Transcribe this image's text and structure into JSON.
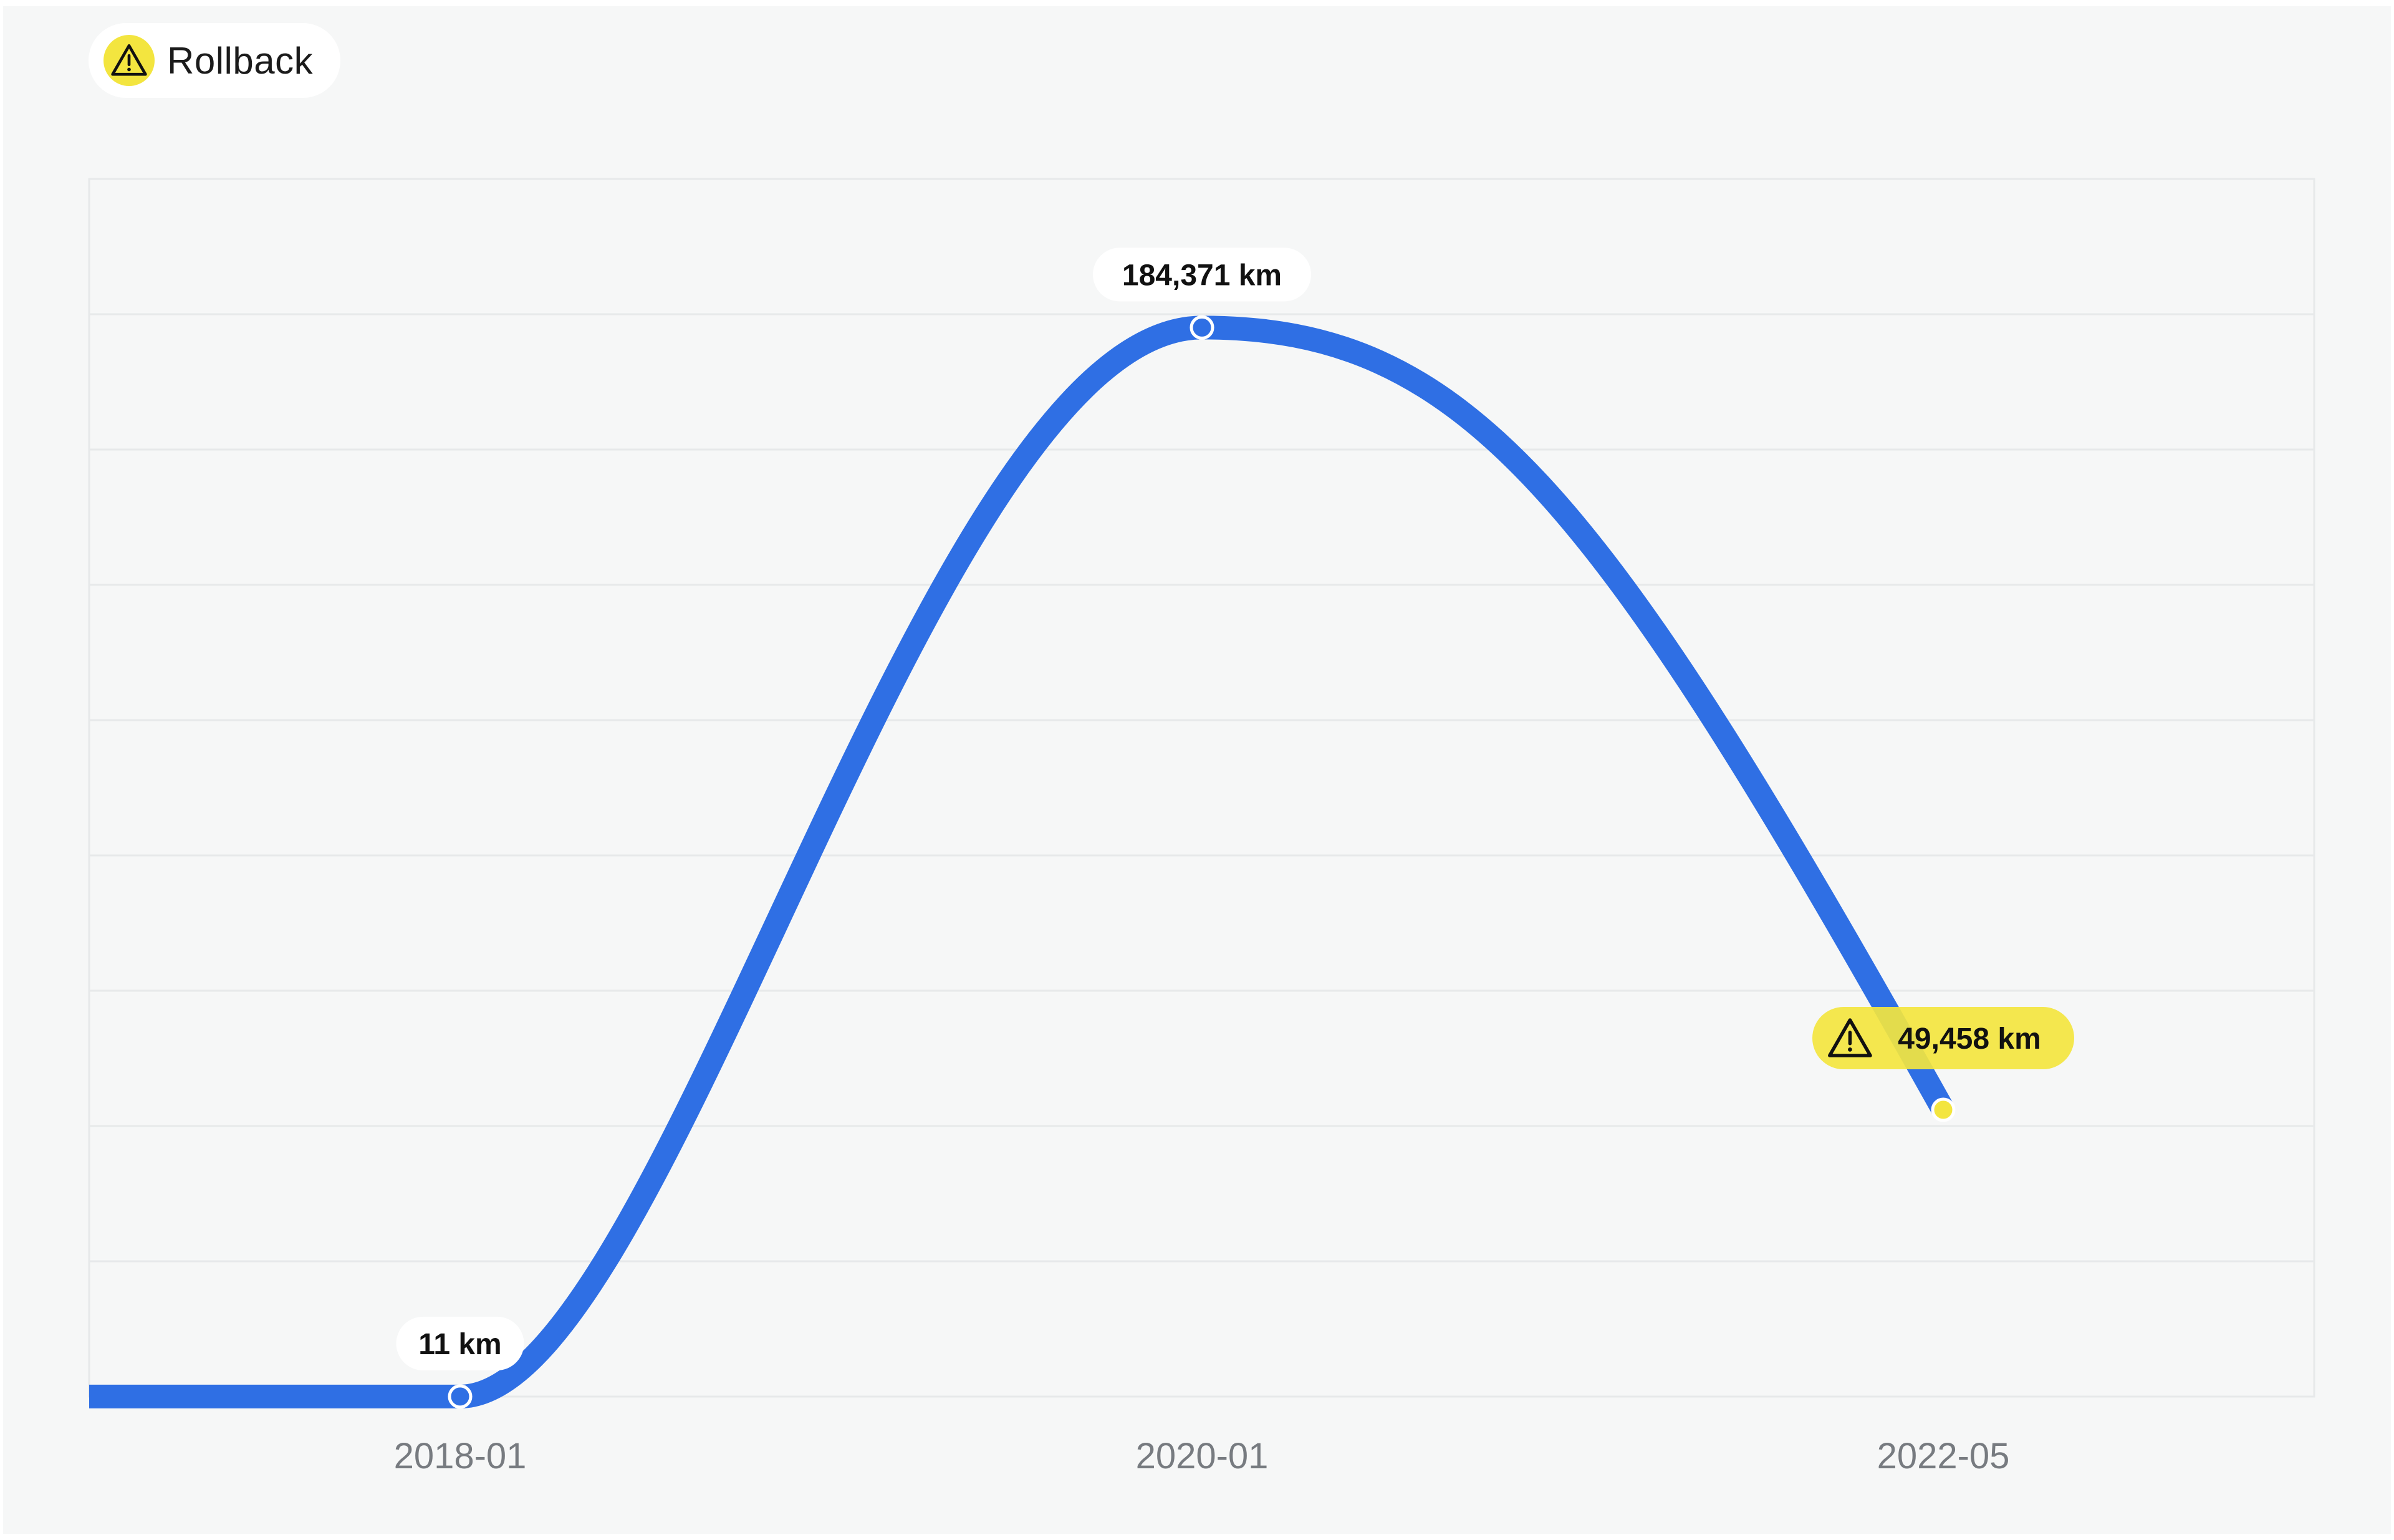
{
  "badge": {
    "label": "Rollback",
    "icon": "warning-icon",
    "color": "#f3e53f"
  },
  "colors": {
    "line": "#2f6fe4",
    "grid": "#e7e9ea",
    "plot_bg": "#f6f7f7",
    "warning": "#f3e53f"
  },
  "chart_data": {
    "type": "line",
    "x": [
      "2018-01",
      "2020-01",
      "2022-05"
    ],
    "values": [
      11,
      184371,
      49458
    ],
    "labels": [
      "11 km",
      "184,371 km",
      "49,458 km"
    ],
    "unit": "km",
    "tick_labels": [
      "2018-01",
      "2020-01",
      "2022-05"
    ],
    "warning_point": "2022-05",
    "ylim": [
      0,
      210000
    ],
    "grid": true
  }
}
